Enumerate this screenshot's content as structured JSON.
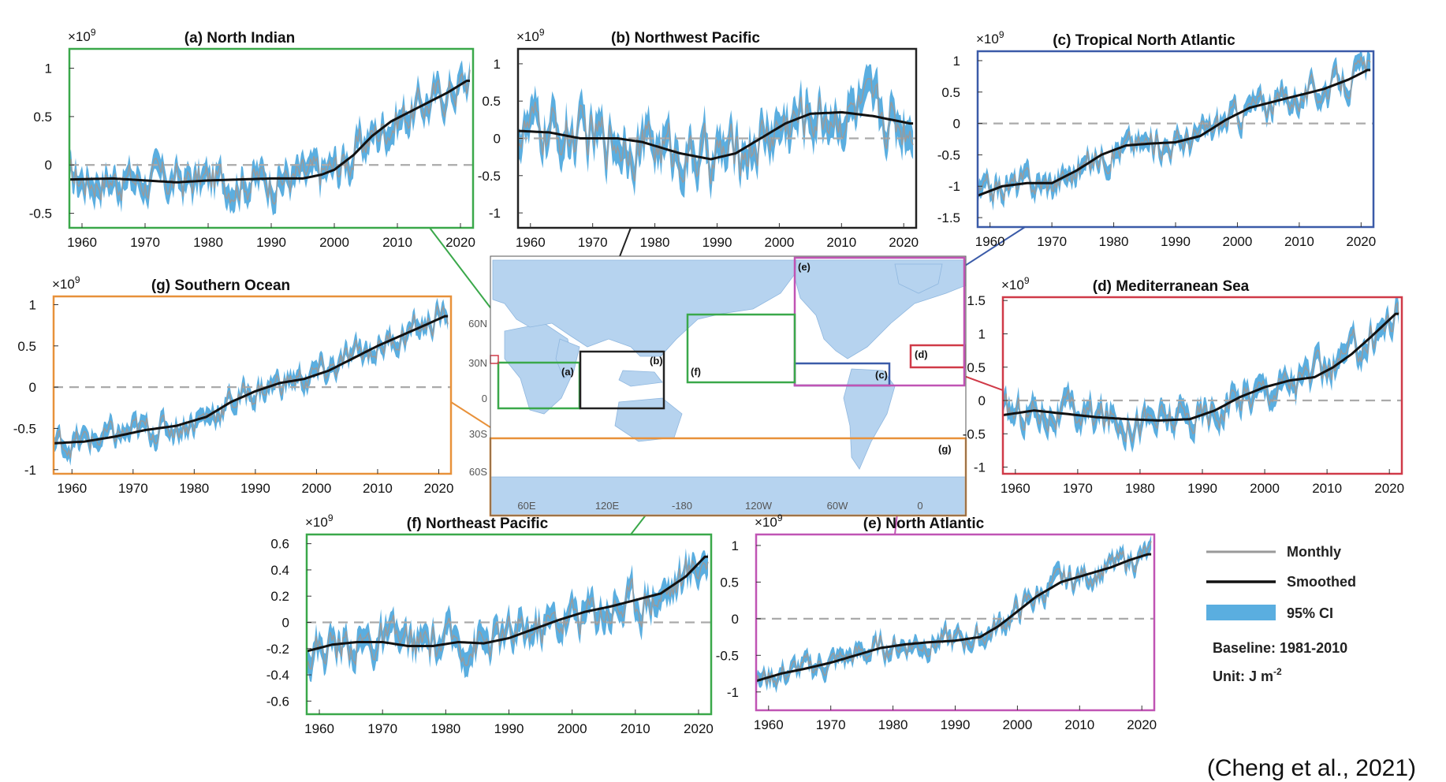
{
  "chart_data": [
    {
      "id": "a",
      "type": "line",
      "title": "(a) North Indian",
      "exponent_base": "×10",
      "exponent_power": "9",
      "xlim": [
        1958,
        2022
      ],
      "ylim": [
        -0.65,
        1.2
      ],
      "xticks": [
        1960,
        1970,
        1980,
        1990,
        2000,
        2010,
        2020
      ],
      "yticks": [
        1,
        0.5,
        0,
        -0.5
      ],
      "baseline": 0,
      "frame_color": "#3aa84a",
      "smoothed": [
        [
          1958,
          -0.15
        ],
        [
          1965,
          -0.14
        ],
        [
          1970,
          -0.16
        ],
        [
          1975,
          -0.18
        ],
        [
          1980,
          -0.16
        ],
        [
          1985,
          -0.15
        ],
        [
          1990,
          -0.14
        ],
        [
          1995,
          -0.14
        ],
        [
          1998,
          -0.1
        ],
        [
          2000,
          -0.05
        ],
        [
          2003,
          0.1
        ],
        [
          2006,
          0.3
        ],
        [
          2009,
          0.45
        ],
        [
          2012,
          0.55
        ],
        [
          2015,
          0.65
        ],
        [
          2018,
          0.75
        ],
        [
          2021,
          0.87
        ]
      ],
      "noise": 0.16
    },
    {
      "id": "b",
      "type": "line",
      "title": "(b) Northwest Pacific",
      "exponent_base": "×10",
      "exponent_power": "9",
      "xlim": [
        1958,
        2022
      ],
      "ylim": [
        -1.2,
        1.2
      ],
      "xticks": [
        1960,
        1970,
        1980,
        1990,
        2000,
        2010,
        2020
      ],
      "yticks": [
        1,
        0.5,
        0,
        -0.5,
        -1
      ],
      "baseline": 0,
      "frame_color": "#222222",
      "smoothed": [
        [
          1958,
          0.1
        ],
        [
          1963,
          0.08
        ],
        [
          1968,
          0.0
        ],
        [
          1974,
          0.0
        ],
        [
          1978,
          -0.05
        ],
        [
          1984,
          -0.2
        ],
        [
          1989,
          -0.28
        ],
        [
          1993,
          -0.2
        ],
        [
          1997,
          0.0
        ],
        [
          2001,
          0.2
        ],
        [
          2005,
          0.33
        ],
        [
          2010,
          0.35
        ],
        [
          2015,
          0.3
        ],
        [
          2021,
          0.2
        ]
      ],
      "noise": 0.28
    },
    {
      "id": "c",
      "type": "line",
      "title": "(c) Tropical North Atlantic",
      "exponent_base": "×10",
      "exponent_power": "9",
      "xlim": [
        1958,
        2022
      ],
      "ylim": [
        -1.65,
        1.15
      ],
      "xticks": [
        1960,
        1970,
        1980,
        1990,
        2000,
        2010,
        2020
      ],
      "yticks": [
        1,
        0.5,
        0,
        -0.5,
        -1,
        -1.5
      ],
      "baseline": 0,
      "frame_color": "#3b5ba8",
      "smoothed": [
        [
          1958,
          -1.15
        ],
        [
          1962,
          -1.0
        ],
        [
          1966,
          -0.95
        ],
        [
          1970,
          -0.95
        ],
        [
          1974,
          -0.75
        ],
        [
          1978,
          -0.5
        ],
        [
          1982,
          -0.35
        ],
        [
          1986,
          -0.32
        ],
        [
          1990,
          -0.3
        ],
        [
          1994,
          -0.2
        ],
        [
          1998,
          0.05
        ],
        [
          2002,
          0.25
        ],
        [
          2006,
          0.35
        ],
        [
          2010,
          0.45
        ],
        [
          2014,
          0.55
        ],
        [
          2018,
          0.7
        ],
        [
          2021,
          0.85
        ]
      ],
      "noise": 0.18
    },
    {
      "id": "g",
      "type": "line",
      "title": "(g) Southern Ocean",
      "exponent_base": "×10",
      "exponent_power": "9",
      "xlim": [
        1957,
        2022
      ],
      "ylim": [
        -1.05,
        1.1
      ],
      "xticks": [
        1960,
        1970,
        1980,
        1990,
        2000,
        2010,
        2020
      ],
      "yticks": [
        1,
        0.5,
        0,
        -0.5,
        -1
      ],
      "baseline": 0,
      "frame_color": "#e8913a",
      "smoothed": [
        [
          1957,
          -0.68
        ],
        [
          1962,
          -0.66
        ],
        [
          1967,
          -0.6
        ],
        [
          1972,
          -0.52
        ],
        [
          1977,
          -0.47
        ],
        [
          1982,
          -0.36
        ],
        [
          1986,
          -0.18
        ],
        [
          1990,
          -0.05
        ],
        [
          1994,
          0.05
        ],
        [
          1998,
          0.1
        ],
        [
          2002,
          0.2
        ],
        [
          2006,
          0.35
        ],
        [
          2010,
          0.5
        ],
        [
          2014,
          0.63
        ],
        [
          2018,
          0.76
        ],
        [
          2021,
          0.86
        ]
      ],
      "noise": 0.13
    },
    {
      "id": "d",
      "type": "line",
      "title": "(d) Mediterranean Sea",
      "exponent_base": "×10",
      "exponent_power": "9",
      "xlim": [
        1958,
        2022
      ],
      "ylim": [
        -1.1,
        1.55
      ],
      "xticks": [
        1960,
        1970,
        1980,
        1990,
        2000,
        2010,
        2020
      ],
      "yticks": [
        1.5,
        1,
        0.5,
        0,
        -0.5,
        -1
      ],
      "baseline": 0,
      "frame_color": "#d03a48",
      "smoothed": [
        [
          1958,
          -0.22
        ],
        [
          1963,
          -0.15
        ],
        [
          1968,
          -0.2
        ],
        [
          1973,
          -0.25
        ],
        [
          1978,
          -0.28
        ],
        [
          1983,
          -0.3
        ],
        [
          1988,
          -0.28
        ],
        [
          1992,
          -0.15
        ],
        [
          1996,
          0.05
        ],
        [
          2000,
          0.2
        ],
        [
          2004,
          0.3
        ],
        [
          2008,
          0.35
        ],
        [
          2011,
          0.5
        ],
        [
          2014,
          0.7
        ],
        [
          2017,
          0.95
        ],
        [
          2021,
          1.3
        ]
      ],
      "noise": 0.2
    },
    {
      "id": "f",
      "type": "line",
      "title": "(f) Northeast Pacific",
      "exponent_base": "×10",
      "exponent_power": "9",
      "xlim": [
        1958,
        2022
      ],
      "ylim": [
        -0.7,
        0.67
      ],
      "xticks": [
        1960,
        1970,
        1980,
        1990,
        2000,
        2010,
        2020
      ],
      "yticks": [
        0.6,
        0.4,
        0.2,
        0,
        -0.2,
        -0.4,
        -0.6
      ],
      "baseline": 0,
      "frame_color": "#3aa84a",
      "smoothed": [
        [
          1958,
          -0.22
        ],
        [
          1962,
          -0.17
        ],
        [
          1966,
          -0.15
        ],
        [
          1970,
          -0.15
        ],
        [
          1974,
          -0.18
        ],
        [
          1978,
          -0.18
        ],
        [
          1982,
          -0.15
        ],
        [
          1986,
          -0.16
        ],
        [
          1990,
          -0.12
        ],
        [
          1994,
          -0.05
        ],
        [
          1998,
          0.02
        ],
        [
          2002,
          0.08
        ],
        [
          2006,
          0.12
        ],
        [
          2010,
          0.17
        ],
        [
          2014,
          0.22
        ],
        [
          2018,
          0.35
        ],
        [
          2021,
          0.5
        ]
      ],
      "noise": 0.12
    },
    {
      "id": "e",
      "type": "line",
      "title": "(e) North Atlantic",
      "exponent_base": "×10",
      "exponent_power": "9",
      "xlim": [
        1958,
        2022
      ],
      "ylim": [
        -1.25,
        1.15
      ],
      "xticks": [
        1960,
        1970,
        1980,
        1990,
        2000,
        2010,
        2020
      ],
      "yticks": [
        1,
        0.5,
        0,
        -0.5,
        -1
      ],
      "baseline": 0,
      "frame_color": "#c054b4",
      "smoothed": [
        [
          1958,
          -0.85
        ],
        [
          1962,
          -0.75
        ],
        [
          1966,
          -0.68
        ],
        [
          1970,
          -0.6
        ],
        [
          1974,
          -0.5
        ],
        [
          1978,
          -0.4
        ],
        [
          1982,
          -0.35
        ],
        [
          1986,
          -0.32
        ],
        [
          1990,
          -0.3
        ],
        [
          1994,
          -0.25
        ],
        [
          1997,
          -0.1
        ],
        [
          2000,
          0.1
        ],
        [
          2003,
          0.3
        ],
        [
          2007,
          0.5
        ],
        [
          2011,
          0.6
        ],
        [
          2015,
          0.7
        ],
        [
          2018,
          0.8
        ],
        [
          2021,
          0.88
        ]
      ],
      "noise": 0.13
    }
  ],
  "map": {
    "lat_labels": [
      "60N",
      "30N",
      "0",
      "30S",
      "60S"
    ],
    "lon_labels": [
      "60E",
      "120E",
      "-180",
      "120W",
      "60W",
      "0"
    ],
    "regions": [
      {
        "id": "a",
        "label": "(a)",
        "color": "#3aa84a"
      },
      {
        "id": "b",
        "label": "(b)",
        "color": "#222222"
      },
      {
        "id": "c",
        "label": "(c)",
        "color": "#3b5ba8"
      },
      {
        "id": "d",
        "label": "(d)",
        "color": "#d03a48"
      },
      {
        "id": "e",
        "label": "(e)",
        "color": "#c054b4"
      },
      {
        "id": "f",
        "label": "(f)",
        "color": "#3aa84a"
      },
      {
        "id": "g",
        "label": "(g)",
        "color": "#e8913a"
      }
    ]
  },
  "legend": {
    "monthly": "Monthly",
    "smoothed": "Smoothed",
    "ci": "95% CI",
    "baseline": "Baseline: 1981-2010",
    "unit_prefix": "Unit: J m",
    "unit_power": "-2"
  },
  "colors": {
    "monthly": "#9a9a9a",
    "smoothed": "#111111",
    "ci": "#5aaee0",
    "baseline": "#aaaaaa",
    "ocean": "#ffffff",
    "land": "#b6d3ef"
  },
  "citation": "(Cheng et al., 2021)"
}
